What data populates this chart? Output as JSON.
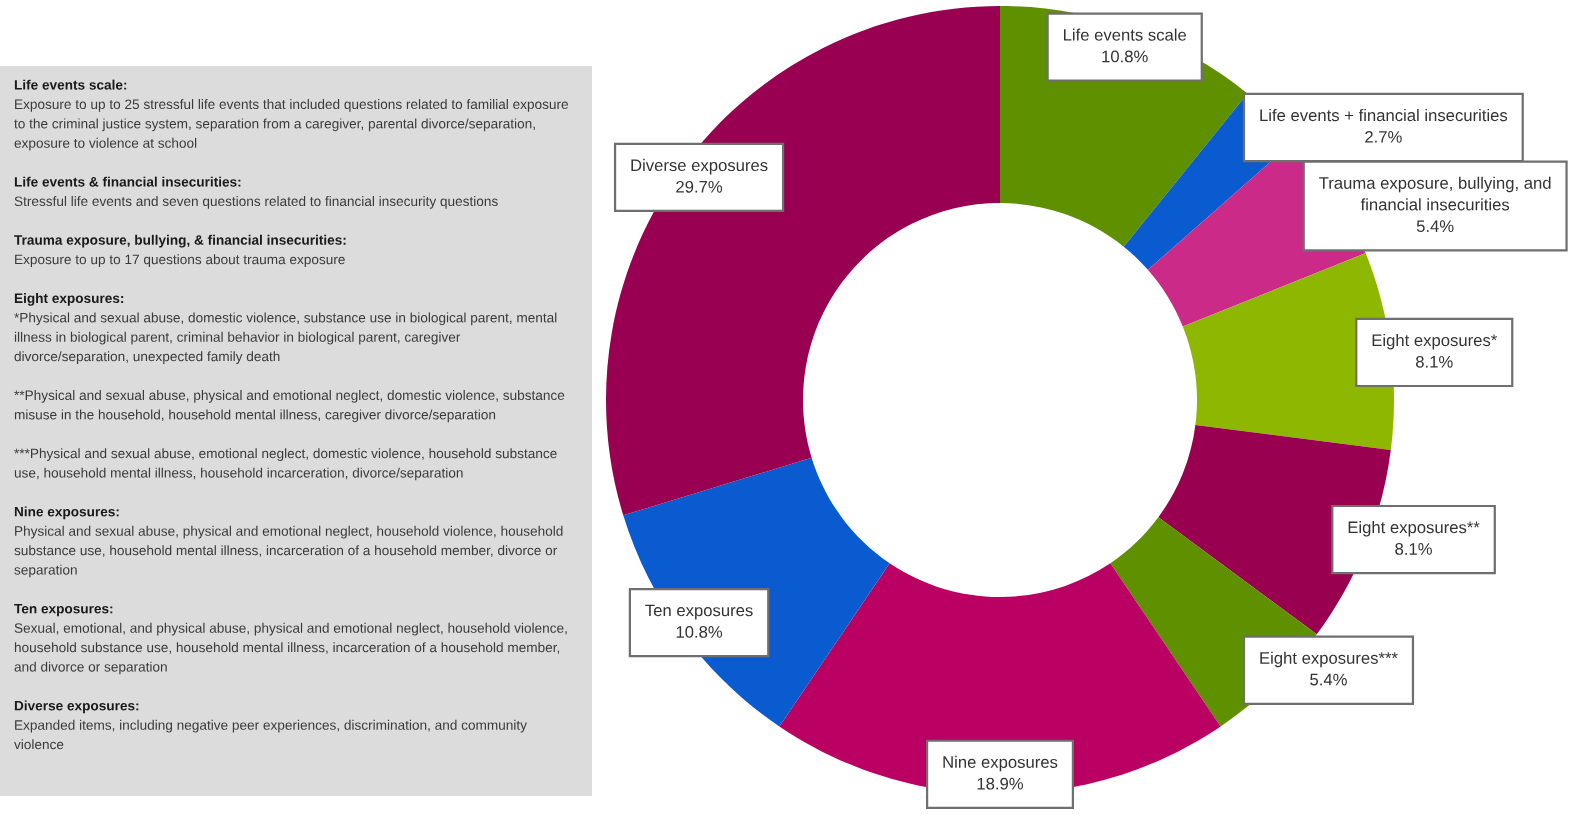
{
  "chart_data": {
    "type": "donut",
    "categories": [
      "Life events scale",
      "Life events + financial insecurities",
      "Trauma exposure, bullying, and financial insecurities",
      "Eight exposures*",
      "Eight exposures**",
      "Eight exposures***",
      "Nine exposures",
      "Ten exposures",
      "Diverse exposures"
    ],
    "values": [
      10.8,
      2.7,
      5.4,
      8.1,
      8.1,
      5.4,
      18.9,
      10.8,
      29.7
    ],
    "value_labels": [
      "10.8%",
      "2.7%",
      "5.4%",
      "8.1%",
      "8.1%",
      "5.4%",
      "18.9%",
      "10.8%",
      "29.7%"
    ],
    "colors": [
      "#5f9000",
      "#0b5bd0",
      "#cc2a88",
      "#8db700",
      "#9a0050",
      "#5f9000",
      "#bb0063",
      "#0b5bd0",
      "#9a0052"
    ],
    "annotations": [
      "Life events scale:\nExposure to up to 25 stressful life events that included questions related to familial exposure to the criminal justice system, separation from a caregiver, parental divorce/separation, exposure to violence at school",
      "Life events & financial insecurities:\nStressful life events and seven questions related to financial insecurity questions",
      "Trauma exposure, bullying, & financial insecurities:\nExposure to up to 17 questions about trauma exposure",
      "Eight exposures:\n*Physical and sexual abuse, domestic violence, substance use in biological parent, mental illness in biological parent, criminal behavior in biological parent, caregiver divorce/separation, unexpected family death\n\n**Physical and sexual abuse, physical and emotional neglect, domestic violence, substance misuse in the household, household mental illness, caregiver divorce/separation\n\n***Physical and sexual abuse, emotional neglect, domestic violence, household substance use, household mental illness, household incarceration, divorce/separation",
      "Nine exposures:\nPhysical and sexual abuse, physical and emotional neglect, household violence, household substance use, household mental illness, incarceration of a household member, divorce or separation",
      "Ten exposures:\nSexual, emotional, and physical abuse, physical and emotional neglect, household violence, household substance use, household mental illness, incarceration of a household member, and divorce or separation",
      "Diverse exposures:\nExpanded items, including negative peer experiences, discrimination, and community violence"
    ]
  }
}
